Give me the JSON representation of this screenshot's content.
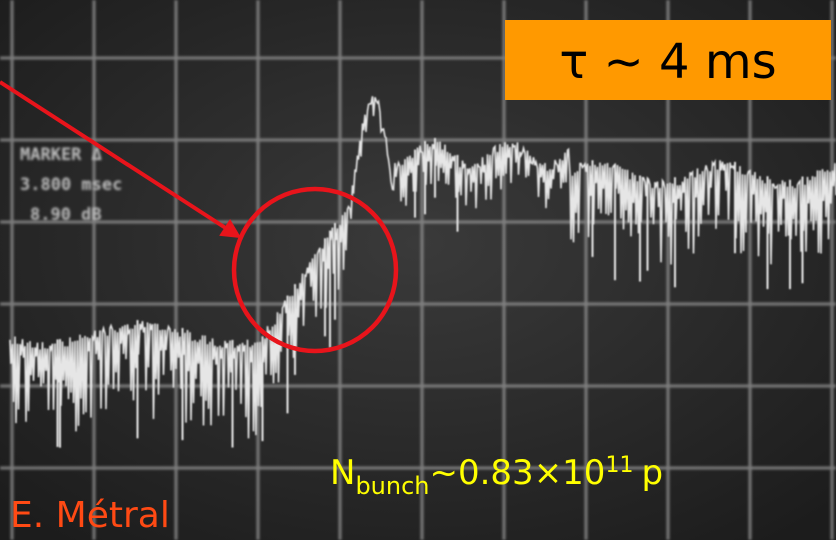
{
  "screen_readout": {
    "lines": [
      "MARKER Δ",
      "3.800 msec",
      "8.90 dB"
    ]
  },
  "tau_label": "τ ~ 4 ms",
  "n_bunch": {
    "symbol": "N",
    "subscript": "bunch",
    "text": "~0.83×10",
    "superscript": "11",
    "unit": "p"
  },
  "author": "E. Métral"
}
